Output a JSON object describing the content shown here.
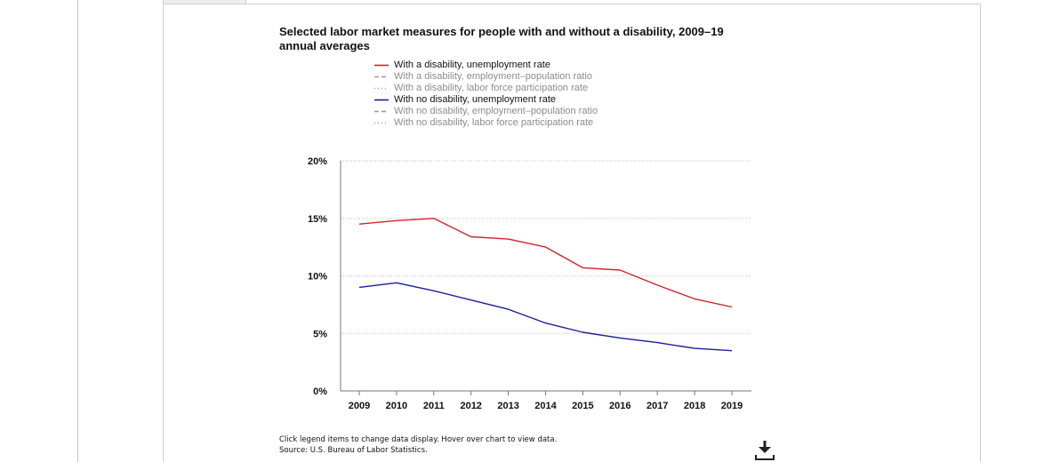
{
  "chart_data": {
    "type": "line",
    "title": "Selected labor market measures for people with and without a disability, 2009–19 annual averages",
    "xlabel": "",
    "ylabel": "",
    "x": [
      2009,
      2010,
      2011,
      2012,
      2013,
      2014,
      2015,
      2016,
      2017,
      2018,
      2019
    ],
    "x_tick_labels": [
      "2009",
      "2010",
      "2011",
      "2012",
      "2013",
      "2014",
      "2015",
      "2016",
      "2017",
      "2018",
      "2019"
    ],
    "ylim": [
      0,
      20
    ],
    "y_ticks": [
      0,
      5,
      10,
      15,
      20
    ],
    "y_tick_labels": [
      "0%",
      "5%",
      "10%",
      "15%",
      "20%"
    ],
    "grid": "horizontal dotted",
    "legend_position": "top",
    "series": [
      {
        "name": "With a disability, unemployment rate",
        "color": "#d1232a",
        "style": "solid",
        "visible": true,
        "values": [
          14.5,
          14.8,
          15.0,
          13.4,
          13.2,
          12.5,
          10.7,
          10.5,
          9.2,
          8.0,
          7.3
        ]
      },
      {
        "name": "With a disability, employment–population ratio",
        "color": "#9a9a9a",
        "style": "dashed",
        "visible": false
      },
      {
        "name": "With a disability, labor force participation rate",
        "color": "#9a9a9a",
        "style": "dotted",
        "visible": false
      },
      {
        "name": "With no disability, unemployment rate",
        "color": "#1a1f96",
        "style": "solid",
        "visible": true,
        "values": [
          9.0,
          9.4,
          8.7,
          7.9,
          7.1,
          5.9,
          5.1,
          4.6,
          4.2,
          3.7,
          3.5
        ]
      },
      {
        "name": "With no disability, employment–population ratio",
        "color": "#9a9a9a",
        "style": "dashed",
        "visible": false
      },
      {
        "name": "With no disability, labor force participation rate",
        "color": "#9a9a9a",
        "style": "dotted",
        "visible": false
      }
    ]
  },
  "footnote": {
    "instructions": "Click legend items to change data display. Hover over chart to view data.",
    "source": "Source: U.S. Bureau of Labor Statistics."
  },
  "icons": {
    "download": "download-icon"
  }
}
